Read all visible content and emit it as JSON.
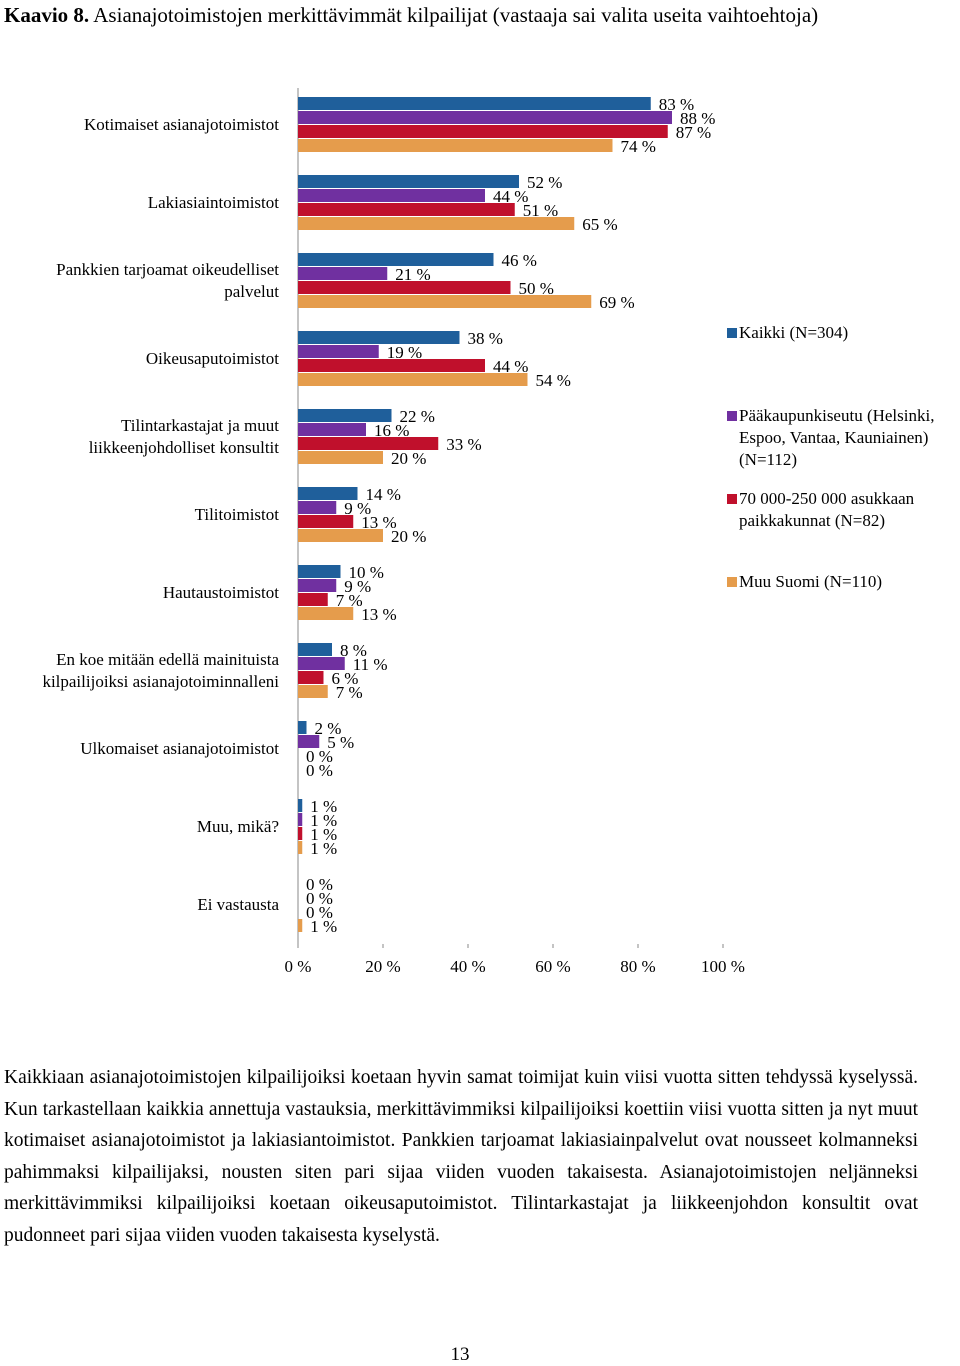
{
  "heading": {
    "label": "Kaavio 8.",
    "title": "Asianajotoimistojen merkittävimmät kilpailijat (vastaaja sai valita useita vaihtoehtoja)"
  },
  "chart_data": {
    "type": "hbar",
    "categories": [
      "Kotimaiset asianajotoimistot",
      "Lakiasiaintoimistot",
      "Pankkien tarjoamat oikeudelliset palvelut",
      "Oikeusaputoimistot",
      "Tilintarkastajat ja muut liikkeenjohdolliset konsultit",
      "Tilitoimistot",
      "Hautaustoimistot",
      "En koe mitään edellä mainituista kilpailijoiksi asianajotoiminnalleni",
      "Ulkomaiset asianajotoimistot",
      "Muu, mikä?",
      "Ei vastausta"
    ],
    "series": [
      {
        "name": "Kaikki (N=304)",
        "color": "#1f5f9b",
        "values": [
          83,
          52,
          46,
          38,
          22,
          14,
          10,
          8,
          2,
          1,
          0
        ],
        "value_labels": [
          "83 %",
          "52 %",
          "46 %",
          "38 %",
          "22 %",
          "14 %",
          "10 %",
          "8 %",
          "2 %",
          "1 %",
          "0 %"
        ]
      },
      {
        "name": "Pääkaupunkiseutu (Helsinki, Espoo, Vantaa, Kauniainen) (N=112)",
        "color": "#7030a0",
        "values": [
          88,
          44,
          21,
          19,
          16,
          9,
          9,
          11,
          5,
          1,
          0
        ],
        "value_labels": [
          "88 %",
          "44 %",
          "21 %",
          "19 %",
          "16 %",
          "9 %",
          "9 %",
          "11 %",
          "5 %",
          "1 %",
          "0 %"
        ]
      },
      {
        "name": "70 000-250 000 asukkaan paikkakunnat (N=82)",
        "color": "#c0102c",
        "values": [
          87,
          51,
          50,
          44,
          33,
          13,
          7,
          6,
          0,
          1,
          0
        ],
        "value_labels": [
          "87 %",
          "51 %",
          "50 %",
          "44 %",
          "33 %",
          "13 %",
          "7 %",
          "6 %",
          "0 %",
          "1 %",
          "0 %"
        ]
      },
      {
        "name": "Muu Suomi (N=110)",
        "color": "#e59c4c",
        "values": [
          74,
          65,
          69,
          54,
          20,
          20,
          13,
          7,
          0,
          1,
          1
        ],
        "value_labels": [
          "74 %",
          "65 %",
          "69 %",
          "54 %",
          "20 %",
          "20 %",
          "13 %",
          "7 %",
          "0 %",
          "1 %",
          "1 %"
        ]
      }
    ],
    "xlim": [
      0,
      100
    ],
    "xticks": [
      {
        "value": 0,
        "label": "0 %"
      },
      {
        "value": 20,
        "label": "20 %"
      },
      {
        "value": 40,
        "label": "40 %"
      },
      {
        "value": 60,
        "label": "60 %"
      },
      {
        "value": 80,
        "label": "80 %"
      },
      {
        "value": 100,
        "label": "100 %"
      }
    ],
    "legend": "right"
  },
  "paragraph": "Kaikkiaan asianajotoimistojen kilpailijoiksi koetaan hyvin samat toimijat kuin viisi vuotta sitten tehdyssä kyselyssä. Kun tarkastellaan kaikkia annettuja vastauksia, merkittävimmiksi kilpailijoiksi koettiin viisi vuotta sitten ja nyt muut kotimaiset asianajotoimistot ja lakiasiantoimistot. Pankkien tarjoamat lakiasiainpalvelut ovat nousseet kolmanneksi pahimmaksi kilpailijaksi, nousten siten pari sijaa viiden vuoden takaisesta. Asianajotoimistojen neljänneksi merkittävimmiksi kilpailijoiksi koetaan oikeusaputoimistot. Tilintarkastajat ja liikkeenjohdon konsultit ovat pudonneet pari sijaa viiden vuoden takaisesta kyselystä.",
  "page_number": "13"
}
